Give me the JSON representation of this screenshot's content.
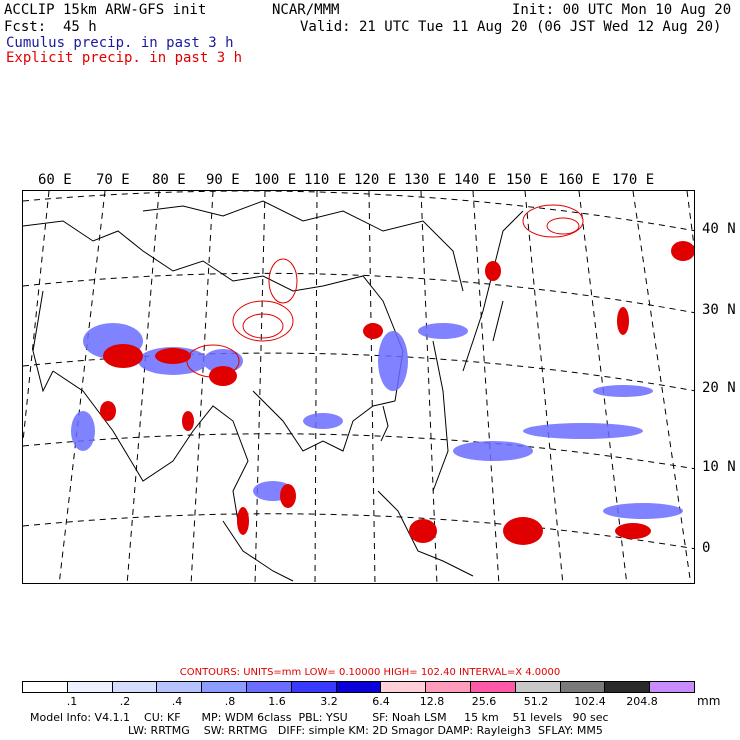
{
  "header": {
    "line1_left": "ACCLIP 15km ARW-GFS init",
    "line1_mid": "NCAR/MMM",
    "line1_right": "Init: 00 UTC Mon 10 Aug 20",
    "line2_left": "Fcst:  45 h",
    "line2_right": "Valid: 21 UTC Tue 11 Aug 20 (06 JST Wed 12 Aug 20)",
    "line3": "Cumulus precip. in past 3 h",
    "line4": "Explicit precip. in past 3 h"
  },
  "map": {
    "lon_labels": [
      "60 E",
      "70 E",
      "80 E",
      "90 E",
      "100 E",
      "110 E",
      "120 E",
      "130 E",
      "140 E",
      "150 E",
      "160 E",
      "170 E"
    ],
    "lat_labels": [
      "40 N",
      "30 N",
      "20 N",
      "10 N",
      "0"
    ]
  },
  "contours": {
    "text": "CONTOURS:  UNITS=mm  LOW=  0.10000      HIGH=  102.40      INTERVAL=X  4.0000"
  },
  "legend": {
    "colors": [
      "#ffffff",
      "#eef2ff",
      "#d6deff",
      "#b6c3ff",
      "#8d9cff",
      "#6a6dff",
      "#3a3aff",
      "#0a00d8",
      "#ffd0d8",
      "#ff9cbc",
      "#ff5aa8",
      "#c8c8c8",
      "#7a7a7a",
      "#2a2a2a",
      "#c98cff"
    ],
    "labels": [
      ".1",
      ".2",
      ".4",
      ".8",
      "1.6",
      "3.2",
      "6.4",
      "12.8",
      "25.6",
      "51.2",
      "102.4",
      "204.8"
    ],
    "units": "mm"
  },
  "footer": {
    "line1": "Model Info: V4.1.1    CU: KF      MP: WDM 6class  PBL: YSU       SF: Noah LSM     15 km    51 levels   90 sec",
    "line2": "LW: RRTMG    SW: RRTMG   DIFF: simple KM: 2D Smagor DAMP: Rayleigh3  SFLAY: MM5"
  }
}
